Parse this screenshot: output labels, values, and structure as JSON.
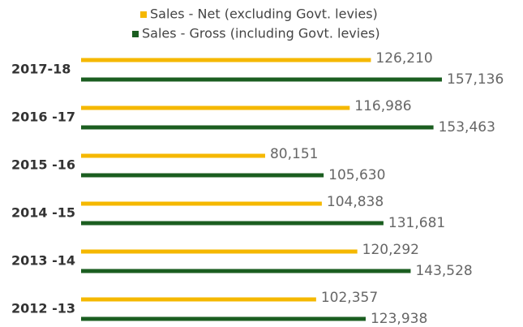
{
  "chart_data": {
    "type": "hbar",
    "categories": [
      "2017-18",
      "2016 -17",
      "2015 -16",
      "2014 -15",
      "2013 -14",
      "2012 -13"
    ],
    "series": [
      {
        "name": "Sales - Net (excluding Govt. levies)",
        "color": "#f5b800",
        "values": [
          126210,
          116986,
          80151,
          104838,
          120292,
          102357
        ],
        "value_labels": [
          "126,210",
          "116,986",
          "80,151",
          "104,838",
          "120,292",
          "102,357"
        ]
      },
      {
        "name": "Sales - Gross (including Govt. levies)",
        "color": "#1b5e20",
        "values": [
          157136,
          153463,
          105630,
          131681,
          143528,
          123938
        ],
        "value_labels": [
          "157,136",
          "153,463",
          "105,630",
          "131,681",
          "143,528",
          "123,938"
        ]
      }
    ]
  }
}
